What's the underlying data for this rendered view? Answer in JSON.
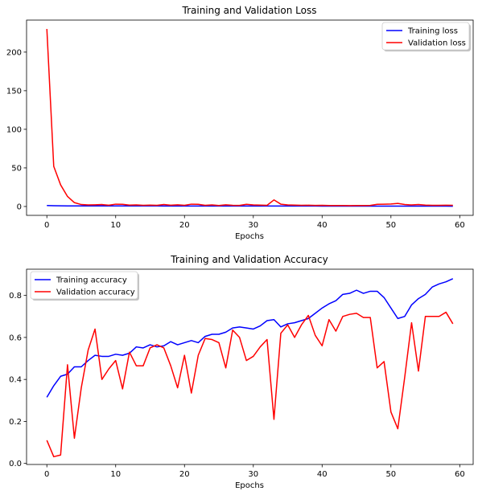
{
  "chart_data": [
    {
      "type": "line",
      "title": "Training and Validation Loss",
      "xlabel": "Epochs",
      "ylabel": "",
      "xlim": [
        -2.95,
        61.95
      ],
      "ylim": [
        -11.5,
        241.5
      ],
      "xticks": [
        0,
        10,
        20,
        30,
        40,
        50,
        60
      ],
      "xtick_labels": [
        "0",
        "10",
        "20",
        "30",
        "40",
        "50",
        "60"
      ],
      "yticks": [
        0,
        50,
        100,
        150,
        200
      ],
      "ytick_labels": [
        "0",
        "50",
        "100",
        "150",
        "200"
      ],
      "grid": false,
      "legend_position": "top-right",
      "series": [
        {
          "name": "Training loss",
          "color": "#0000ff",
          "x": [
            0,
            1,
            2,
            3,
            4,
            5,
            6,
            7,
            8,
            9,
            10,
            11,
            12,
            13,
            14,
            15,
            16,
            17,
            18,
            19,
            20,
            21,
            22,
            23,
            24,
            25,
            26,
            27,
            28,
            29,
            30,
            31,
            32,
            33,
            34,
            35,
            36,
            37,
            38,
            39,
            40,
            41,
            42,
            43,
            44,
            45,
            46,
            47,
            48,
            49,
            50,
            51,
            52,
            53,
            54,
            55,
            56,
            57,
            58,
            59
          ],
          "y": [
            1.3,
            1.0,
            0.9,
            0.8,
            0.8,
            0.7,
            0.7,
            0.7,
            0.7,
            0.7,
            0.7,
            0.7,
            0.7,
            0.7,
            0.7,
            0.7,
            0.7,
            0.6,
            0.6,
            0.6,
            0.6,
            0.6,
            0.6,
            0.6,
            0.6,
            0.6,
            0.6,
            0.6,
            0.6,
            0.6,
            0.6,
            0.6,
            0.6,
            0.6,
            0.6,
            0.6,
            0.6,
            0.6,
            0.6,
            0.6,
            0.5,
            0.5,
            0.5,
            0.5,
            0.5,
            0.5,
            0.5,
            0.5,
            0.5,
            0.5,
            0.5,
            0.5,
            0.5,
            0.5,
            0.5,
            0.5,
            0.5,
            0.5,
            0.5,
            0.4
          ]
        },
        {
          "name": "Validation loss",
          "color": "#ff0000",
          "x": [
            0,
            1,
            2,
            3,
            4,
            5,
            6,
            7,
            8,
            9,
            10,
            11,
            12,
            13,
            14,
            15,
            16,
            17,
            18,
            19,
            20,
            21,
            22,
            23,
            24,
            25,
            26,
            27,
            28,
            29,
            30,
            31,
            32,
            33,
            34,
            35,
            36,
            37,
            38,
            39,
            40,
            41,
            42,
            43,
            44,
            45,
            46,
            47,
            48,
            49,
            50,
            51,
            52,
            53,
            54,
            55,
            56,
            57,
            58,
            59
          ],
          "y": [
            230,
            52,
            28,
            13,
            5,
            2.5,
            2,
            2.2,
            2.5,
            1.6,
            3,
            2.8,
            1.8,
            2,
            1.5,
            1.8,
            1.5,
            2.5,
            1.6,
            2.2,
            1.5,
            3,
            2.8,
            1.5,
            2,
            1.3,
            2.2,
            1.5,
            1.4,
            2.8,
            2,
            1.8,
            1.5,
            8.5,
            3,
            2,
            1.8,
            1.5,
            1.6,
            1.4,
            1.5,
            1.3,
            1.2,
            1.2,
            1.1,
            1.2,
            1.3,
            1.4,
            2.8,
            3,
            3.2,
            4,
            2.5,
            2,
            2.6,
            1.8,
            1.5,
            1.5,
            1.6,
            1.5
          ]
        }
      ]
    },
    {
      "type": "line",
      "title": "Training and Validation Accuracy",
      "xlabel": "Epochs",
      "ylabel": "",
      "xlim": [
        -2.95,
        61.95
      ],
      "ylim": [
        -0.005,
        0.925
      ],
      "xticks": [
        0,
        10,
        20,
        30,
        40,
        50,
        60
      ],
      "xtick_labels": [
        "0",
        "10",
        "20",
        "30",
        "40",
        "50",
        "60"
      ],
      "yticks": [
        0.0,
        0.2,
        0.4,
        0.6,
        0.8
      ],
      "ytick_labels": [
        "0.0",
        "0.2",
        "0.4",
        "0.6",
        "0.8"
      ],
      "grid": false,
      "legend_position": "top-left",
      "series": [
        {
          "name": "Training accuracy",
          "color": "#0000ff",
          "x": [
            0,
            1,
            2,
            3,
            4,
            5,
            6,
            7,
            8,
            9,
            10,
            11,
            12,
            13,
            14,
            15,
            16,
            17,
            18,
            19,
            20,
            21,
            22,
            23,
            24,
            25,
            26,
            27,
            28,
            29,
            30,
            31,
            32,
            33,
            34,
            35,
            36,
            37,
            38,
            39,
            40,
            41,
            42,
            43,
            44,
            45,
            46,
            47,
            48,
            49,
            50,
            51,
            52,
            53,
            54,
            55,
            56,
            57,
            58,
            59
          ],
          "y": [
            0.315,
            0.37,
            0.415,
            0.425,
            0.46,
            0.46,
            0.49,
            0.515,
            0.51,
            0.51,
            0.52,
            0.515,
            0.525,
            0.555,
            0.55,
            0.565,
            0.555,
            0.56,
            0.58,
            0.565,
            0.575,
            0.585,
            0.575,
            0.605,
            0.615,
            0.615,
            0.625,
            0.645,
            0.65,
            0.645,
            0.64,
            0.655,
            0.68,
            0.685,
            0.65,
            0.665,
            0.67,
            0.68,
            0.69,
            0.715,
            0.74,
            0.76,
            0.775,
            0.805,
            0.81,
            0.825,
            0.81,
            0.82,
            0.82,
            0.79,
            0.74,
            0.69,
            0.7,
            0.755,
            0.785,
            0.805,
            0.84,
            0.855,
            0.865,
            0.88
          ]
        },
        {
          "name": "Validation accuracy",
          "color": "#ff0000",
          "x": [
            0,
            1,
            2,
            3,
            4,
            5,
            6,
            7,
            8,
            9,
            10,
            11,
            12,
            13,
            14,
            15,
            16,
            17,
            18,
            19,
            20,
            21,
            22,
            23,
            24,
            25,
            26,
            27,
            28,
            29,
            30,
            31,
            32,
            33,
            34,
            35,
            36,
            37,
            38,
            39,
            40,
            41,
            42,
            43,
            44,
            45,
            46,
            47,
            48,
            49,
            50,
            51,
            52,
            53,
            54,
            55,
            56,
            57,
            58,
            59
          ],
          "y": [
            0.11,
            0.032,
            0.04,
            0.47,
            0.12,
            0.36,
            0.54,
            0.64,
            0.4,
            0.45,
            0.49,
            0.355,
            0.53,
            0.465,
            0.465,
            0.55,
            0.565,
            0.55,
            0.465,
            0.36,
            0.515,
            0.335,
            0.515,
            0.595,
            0.59,
            0.575,
            0.455,
            0.635,
            0.6,
            0.49,
            0.51,
            0.555,
            0.59,
            0.21,
            0.62,
            0.66,
            0.6,
            0.66,
            0.705,
            0.61,
            0.56,
            0.685,
            0.63,
            0.7,
            0.71,
            0.715,
            0.695,
            0.695,
            0.455,
            0.485,
            0.245,
            0.165,
            0.41,
            0.67,
            0.44,
            0.7,
            0.7,
            0.7,
            0.72,
            0.665
          ]
        }
      ]
    }
  ]
}
